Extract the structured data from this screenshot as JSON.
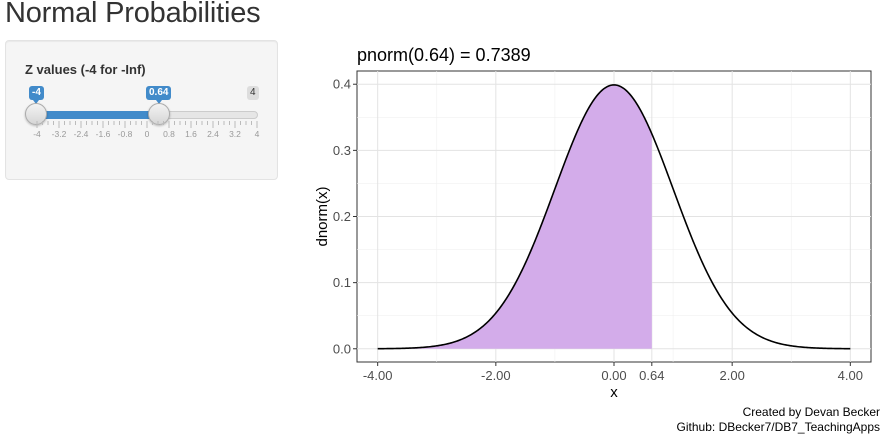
{
  "page": {
    "title": "Normal Probabilities"
  },
  "sidebar": {
    "slider": {
      "label": "Z values (-4 for -Inf)",
      "min": -4,
      "max": 4,
      "value_from": -4,
      "value_to": 0.64,
      "from_label": "-4",
      "to_label": "0.64",
      "max_label": "4",
      "tick_labels": [
        "-4",
        "-3.2",
        "-2.4",
        "-1.6",
        "-0.8",
        "0",
        "0.8",
        "1.6",
        "2.4",
        "3.2",
        "4"
      ],
      "accent_color": "#428bca"
    }
  },
  "chart_data": {
    "type": "area",
    "title": "pnorm(0.64) = 0.7389",
    "xlabel": "x",
    "ylabel": "dnorm(x)",
    "xlim": [
      -4,
      4
    ],
    "ylim": [
      0,
      0.4
    ],
    "x_ticks": [
      -4,
      -2,
      0,
      0.64,
      2,
      4
    ],
    "x_tick_labels": [
      "-4.00",
      "-2.00",
      "0.00",
      "0.64",
      "2.00",
      "4.00"
    ],
    "y_ticks": [
      0,
      0.1,
      0.2,
      0.3,
      0.4
    ],
    "y_tick_labels": [
      "0.0",
      "0.1",
      "0.2",
      "0.3",
      "0.4"
    ],
    "curve": "dnorm(x), mean 0, sd 1",
    "shaded_from": -4,
    "shaded_to": 0.64,
    "shaded_probability": 0.7389,
    "shade_color": "#d3acea",
    "line_color": "#000000",
    "grid": true
  },
  "footer": {
    "line1": "Created by Devan Becker",
    "line2": "Github: DBecker7/DB7_TeachingApps"
  }
}
